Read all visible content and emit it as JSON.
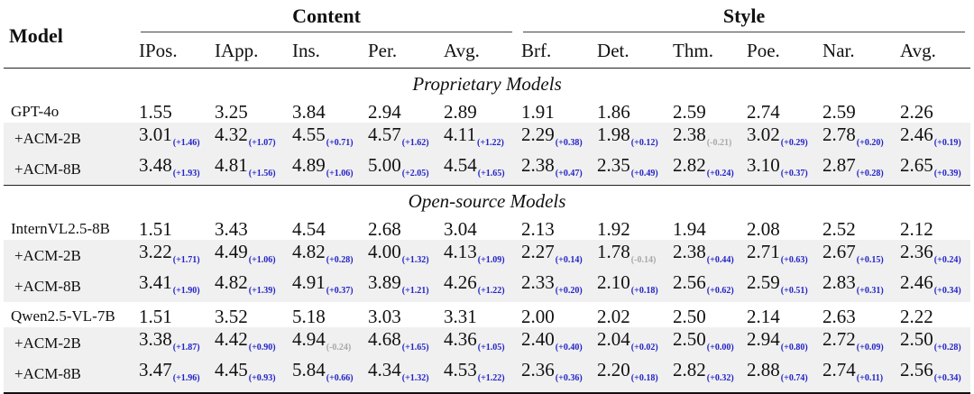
{
  "header": {
    "model": "Model",
    "content_group": "Content",
    "style_group": "Style",
    "columns": [
      "IPos.",
      "IApp.",
      "Ins.",
      "Per.",
      "Avg.",
      "Brf.",
      "Det.",
      "Thm.",
      "Poe.",
      "Nar.",
      "Avg."
    ]
  },
  "sections": [
    {
      "title": "Proprietary Models",
      "rows": [
        {
          "model": "GPT-4o",
          "kind": "base",
          "cells": [
            {
              "v": "1.55"
            },
            {
              "v": "3.25"
            },
            {
              "v": "3.84"
            },
            {
              "v": "2.94"
            },
            {
              "v": "2.89"
            },
            {
              "v": "1.91"
            },
            {
              "v": "1.86"
            },
            {
              "v": "2.59"
            },
            {
              "v": "2.74"
            },
            {
              "v": "2.59"
            },
            {
              "v": "2.26"
            }
          ]
        },
        {
          "model": "+ACM-2B",
          "kind": "sub",
          "cells": [
            {
              "v": "3.01",
              "d": "(+1.46)"
            },
            {
              "v": "4.32",
              "d": "(+1.07)"
            },
            {
              "v": "4.55",
              "d": "(+0.71)"
            },
            {
              "v": "4.57",
              "d": "(+1.62)"
            },
            {
              "v": "4.11",
              "d": "(+1.22)"
            },
            {
              "v": "2.29",
              "d": "(+0.38)"
            },
            {
              "v": "1.98",
              "d": "(+0.12)"
            },
            {
              "v": "2.38",
              "d": "(-0.21)"
            },
            {
              "v": "3.02",
              "d": "(+0.29)"
            },
            {
              "v": "2.78",
              "d": "(+0.20)"
            },
            {
              "v": "2.46",
              "d": "(+0.19)"
            }
          ]
        },
        {
          "model": "+ACM-8B",
          "kind": "sub",
          "cells": [
            {
              "v": "3.48",
              "d": "(+1.93)"
            },
            {
              "v": "4.81",
              "d": "(+1.56)"
            },
            {
              "v": "4.89",
              "d": "(+1.06)"
            },
            {
              "v": "5.00",
              "d": "(+2.05)"
            },
            {
              "v": "4.54",
              "d": "(+1.65)"
            },
            {
              "v": "2.38",
              "d": "(+0.47)"
            },
            {
              "v": "2.35",
              "d": "(+0.49)"
            },
            {
              "v": "2.82",
              "d": "(+0.24)"
            },
            {
              "v": "3.10",
              "d": "(+0.37)"
            },
            {
              "v": "2.87",
              "d": "(+0.28)"
            },
            {
              "v": "2.65",
              "d": "(+0.39)"
            }
          ]
        }
      ]
    },
    {
      "title": "Open-source Models",
      "rows": [
        {
          "model": "InternVL2.5-8B",
          "kind": "base",
          "cells": [
            {
              "v": "1.51"
            },
            {
              "v": "3.43"
            },
            {
              "v": "4.54"
            },
            {
              "v": "2.68"
            },
            {
              "v": "3.04"
            },
            {
              "v": "2.13"
            },
            {
              "v": "1.92"
            },
            {
              "v": "1.94"
            },
            {
              "v": "2.08"
            },
            {
              "v": "2.52"
            },
            {
              "v": "2.12"
            }
          ]
        },
        {
          "model": "+ACM-2B",
          "kind": "sub",
          "cells": [
            {
              "v": "3.22",
              "d": "(+1.71)"
            },
            {
              "v": "4.49",
              "d": "(+1.06)"
            },
            {
              "v": "4.82",
              "d": "(+0.28)"
            },
            {
              "v": "4.00",
              "d": "(+1.32)"
            },
            {
              "v": "4.13",
              "d": "(+1.09)"
            },
            {
              "v": "2.27",
              "d": "(+0.14)"
            },
            {
              "v": "1.78",
              "d": "(-0.14)"
            },
            {
              "v": "2.38",
              "d": "(+0.44)"
            },
            {
              "v": "2.71",
              "d": "(+0.63)"
            },
            {
              "v": "2.67",
              "d": "(+0.15)"
            },
            {
              "v": "2.36",
              "d": "(+0.24)"
            }
          ]
        },
        {
          "model": "+ACM-8B",
          "kind": "sub",
          "cells": [
            {
              "v": "3.41",
              "d": "(+1.90)"
            },
            {
              "v": "4.82",
              "d": "(+1.39)"
            },
            {
              "v": "4.91",
              "d": "(+0.37)"
            },
            {
              "v": "3.89",
              "d": "(+1.21)"
            },
            {
              "v": "4.26",
              "d": "(+1.22)"
            },
            {
              "v": "2.33",
              "d": "(+0.20)"
            },
            {
              "v": "2.10",
              "d": "(+0.18)"
            },
            {
              "v": "2.56",
              "d": "(+0.62)"
            },
            {
              "v": "2.59",
              "d": "(+0.51)"
            },
            {
              "v": "2.83",
              "d": "(+0.31)"
            },
            {
              "v": "2.46",
              "d": "(+0.34)"
            }
          ]
        },
        {
          "model": "Qwen2.5-VL-7B",
          "kind": "base",
          "cells": [
            {
              "v": "1.51"
            },
            {
              "v": "3.52"
            },
            {
              "v": "5.18"
            },
            {
              "v": "3.03"
            },
            {
              "v": "3.31"
            },
            {
              "v": "2.00"
            },
            {
              "v": "2.02"
            },
            {
              "v": "2.50"
            },
            {
              "v": "2.14"
            },
            {
              "v": "2.63"
            },
            {
              "v": "2.22"
            }
          ]
        },
        {
          "model": "+ACM-2B",
          "kind": "sub",
          "cells": [
            {
              "v": "3.38",
              "d": "(+1.87)"
            },
            {
              "v": "4.42",
              "d": "(+0.90)"
            },
            {
              "v": "4.94",
              "d": "(-0.24)"
            },
            {
              "v": "4.68",
              "d": "(+1.65)"
            },
            {
              "v": "4.36",
              "d": "(+1.05)"
            },
            {
              "v": "2.40",
              "d": "(+0.40)"
            },
            {
              "v": "2.04",
              "d": "(+0.02)"
            },
            {
              "v": "2.50",
              "d": "(+0.00)"
            },
            {
              "v": "2.94",
              "d": "(+0.80)"
            },
            {
              "v": "2.72",
              "d": "(+0.09)"
            },
            {
              "v": "2.50",
              "d": "(+0.28)"
            }
          ]
        },
        {
          "model": "+ACM-8B",
          "kind": "sub",
          "cells": [
            {
              "v": "3.47",
              "d": "(+1.96)"
            },
            {
              "v": "4.45",
              "d": "(+0.93)"
            },
            {
              "v": "5.84",
              "d": "(+0.66)"
            },
            {
              "v": "4.34",
              "d": "(+1.32)"
            },
            {
              "v": "4.53",
              "d": "(+1.22)"
            },
            {
              "v": "2.36",
              "d": "(+0.36)"
            },
            {
              "v": "2.20",
              "d": "(+0.18)"
            },
            {
              "v": "2.82",
              "d": "(+0.32)"
            },
            {
              "v": "2.88",
              "d": "(+0.74)"
            },
            {
              "v": "2.74",
              "d": "(+0.11)"
            },
            {
              "v": "2.56",
              "d": "(+0.34)"
            }
          ]
        }
      ]
    }
  ],
  "colors": {
    "positive_delta": "#2323c8",
    "negative_delta": "#a8a8a8",
    "sub_row_bg": "#f0f0f0"
  }
}
